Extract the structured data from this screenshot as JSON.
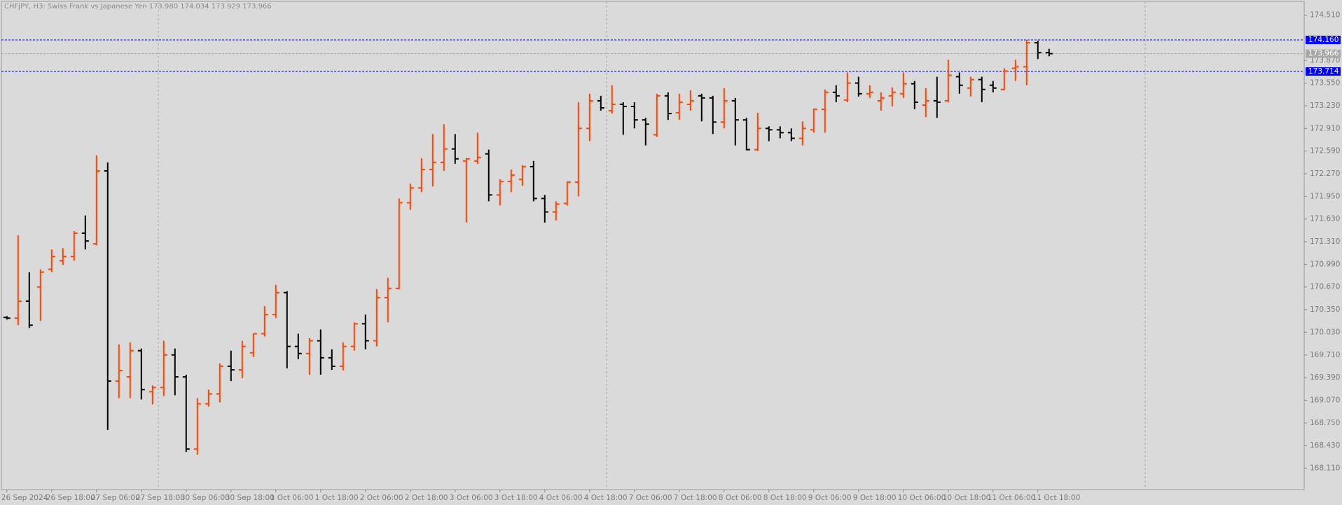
{
  "chart_data": {
    "type": "ohlc",
    "title": "CHFJPY, H3:  Swiss Frank vs Japanese Yen  173.980 174.034 173.929 173.966",
    "categories": [
      "26 Sep 2024",
      null,
      null,
      null,
      "26 Sep 18:00",
      null,
      null,
      null,
      "27 Sep 06:00",
      null,
      null,
      null,
      "27 Sep 18:00",
      null,
      null,
      null,
      "30 Sep 06:00",
      null,
      null,
      null,
      "30 Sep 18:00",
      null,
      null,
      null,
      "1 Oct 06:00",
      null,
      null,
      null,
      "1 Oct 18:00",
      null,
      null,
      null,
      "2 Oct 06:00",
      null,
      null,
      null,
      "2 Oct 18:00",
      null,
      null,
      null,
      "3 Oct 06:00",
      null,
      null,
      null,
      "3 Oct 18:00",
      null,
      null,
      null,
      "4 Oct 06:00",
      null,
      null,
      null,
      "4 Oct 18:00",
      null,
      null,
      null,
      "7 Oct 06:00",
      null,
      null,
      null,
      "7 Oct 18:00",
      null,
      null,
      null,
      "8 Oct 06:00",
      null,
      null,
      null,
      "8 Oct 18:00",
      null,
      null,
      null,
      "9 Oct 06:00",
      null,
      null,
      null,
      "9 Oct 18:00",
      null,
      null,
      null,
      "10 Oct 06:00",
      null,
      null,
      null,
      "10 Oct 18:00",
      null,
      null,
      null,
      "11 Oct 06:00",
      null,
      null,
      null,
      "11 Oct 18:00",
      null
    ],
    "open": [
      170.24,
      170.23,
      170.47,
      170.67,
      170.92,
      171.04,
      171.1,
      171.43,
      171.28,
      172.31,
      169.34,
      169.4,
      169.77,
      169.19,
      169.25,
      169.71,
      169.4,
      168.38,
      169.02,
      169.16,
      169.55,
      169.5,
      169.74,
      170.01,
      170.28,
      170.59,
      169.83,
      169.73,
      169.91,
      169.67,
      169.55,
      169.83,
      170.15,
      169.91,
      170.52,
      170.65,
      171.86,
      172.07,
      172.33,
      172.43,
      172.62,
      172.45,
      172.45,
      172.55,
      171.97,
      172.16,
      172.19,
      172.37,
      171.92,
      171.73,
      171.85,
      172.15,
      172.91,
      173.3,
      173.16,
      173.25,
      173.22,
      173.03,
      172.82,
      173.37,
      173.13,
      173.25,
      173.37,
      173.34,
      173.0,
      173.3,
      173.03,
      172.61,
      172.91,
      172.89,
      172.85,
      172.77,
      172.89,
      173.18,
      173.42,
      173.31,
      173.55,
      173.4,
      173.3,
      173.37,
      173.4,
      173.54,
      173.24,
      173.3,
      173.3,
      173.64,
      173.48,
      173.6,
      173.52,
      173.46,
      173.76,
      173.78,
      174.12,
      173.98
    ],
    "high": [
      170.26,
      171.4,
      170.88,
      170.92,
      171.2,
      171.22,
      171.46,
      171.68,
      172.53,
      172.43,
      169.86,
      169.89,
      169.8,
      169.28,
      169.91,
      169.8,
      169.43,
      169.1,
      169.22,
      169.59,
      169.77,
      169.91,
      170.01,
      170.4,
      170.7,
      170.61,
      170.01,
      169.95,
      170.07,
      169.79,
      169.89,
      170.17,
      170.28,
      170.64,
      170.8,
      171.92,
      172.13,
      172.49,
      172.83,
      172.97,
      172.83,
      172.49,
      172.85,
      172.61,
      172.19,
      172.33,
      172.39,
      172.45,
      171.97,
      171.88,
      172.16,
      173.28,
      173.4,
      173.37,
      173.52,
      173.28,
      173.28,
      173.06,
      173.4,
      173.42,
      173.4,
      173.45,
      173.4,
      173.37,
      173.48,
      173.34,
      173.06,
      173.13,
      172.94,
      172.94,
      172.91,
      173.01,
      173.19,
      173.46,
      173.52,
      173.7,
      173.64,
      173.52,
      173.42,
      173.49,
      173.7,
      173.58,
      173.48,
      173.64,
      173.88,
      173.7,
      173.64,
      173.64,
      173.58,
      173.76,
      173.88,
      174.16,
      174.15,
      174.034
    ],
    "low": [
      170.21,
      170.13,
      170.09,
      170.19,
      170.88,
      170.98,
      171.04,
      171.2,
      171.26,
      168.65,
      169.1,
      169.1,
      169.08,
      169.01,
      169.13,
      169.14,
      168.34,
      168.3,
      168.98,
      169.04,
      169.34,
      169.38,
      169.68,
      169.97,
      170.23,
      169.52,
      169.65,
      169.43,
      169.43,
      169.5,
      169.49,
      169.77,
      169.79,
      169.83,
      170.17,
      170.64,
      171.76,
      172.01,
      172.09,
      172.31,
      172.41,
      171.58,
      172.41,
      171.88,
      171.82,
      172.01,
      172.1,
      171.88,
      171.58,
      171.61,
      171.82,
      171.95,
      172.73,
      173.16,
      173.12,
      172.82,
      172.91,
      172.67,
      172.79,
      173.03,
      173.03,
      173.16,
      173.01,
      172.83,
      172.91,
      172.67,
      172.6,
      172.59,
      172.73,
      172.77,
      172.73,
      172.67,
      172.85,
      172.85,
      173.28,
      173.28,
      173.36,
      173.34,
      173.16,
      173.22,
      173.34,
      173.18,
      173.07,
      173.06,
      173.28,
      173.4,
      173.36,
      173.28,
      173.42,
      173.45,
      173.58,
      173.52,
      173.89,
      173.929
    ],
    "close": [
      170.23,
      170.47,
      170.13,
      170.88,
      171.1,
      171.1,
      171.43,
      171.32,
      172.31,
      169.34,
      169.49,
      169.77,
      169.22,
      169.25,
      169.71,
      169.4,
      168.38,
      169.02,
      169.16,
      169.55,
      169.5,
      169.83,
      170.01,
      170.28,
      170.59,
      169.83,
      169.73,
      169.91,
      169.67,
      169.55,
      169.83,
      170.15,
      169.91,
      170.52,
      170.65,
      171.86,
      172.07,
      172.33,
      172.43,
      172.62,
      172.48,
      172.48,
      172.5,
      171.97,
      172.16,
      172.25,
      172.37,
      171.92,
      171.73,
      171.84,
      172.15,
      172.91,
      173.3,
      173.2,
      173.25,
      173.22,
      173.03,
      172.97,
      173.37,
      173.12,
      173.28,
      173.3,
      173.34,
      173.0,
      173.3,
      173.03,
      172.61,
      172.91,
      172.89,
      172.85,
      172.77,
      172.91,
      173.18,
      173.42,
      173.37,
      173.55,
      173.4,
      173.42,
      173.34,
      173.42,
      173.54,
      173.28,
      173.3,
      173.28,
      173.66,
      173.52,
      173.6,
      173.46,
      173.48,
      173.72,
      173.78,
      174.12,
      173.98,
      173.966
    ],
    "up_color": "#ff4500",
    "down_color": "#000000",
    "ylim": [
      167.808,
      174.704
    ],
    "yticks": [
      {
        "value": 174.51,
        "label": "174.510"
      },
      {
        "value": 173.87,
        "label": "173.870"
      },
      {
        "value": 173.55,
        "label": "173.550"
      },
      {
        "value": 173.23,
        "label": "173.230"
      },
      {
        "value": 172.91,
        "label": "172.910"
      },
      {
        "value": 172.59,
        "label": "172.590"
      },
      {
        "value": 172.27,
        "label": "172.270"
      },
      {
        "value": 171.95,
        "label": "171.950"
      },
      {
        "value": 171.63,
        "label": "171.630"
      },
      {
        "value": 171.31,
        "label": "171.310"
      },
      {
        "value": 170.99,
        "label": "170.990"
      },
      {
        "value": 170.67,
        "label": "170.670"
      },
      {
        "value": 170.35,
        "label": "170.350"
      },
      {
        "value": 170.03,
        "label": "170.030"
      },
      {
        "value": 169.71,
        "label": "169.710"
      },
      {
        "value": 169.39,
        "label": "169.390"
      },
      {
        "value": 169.07,
        "label": "169.070"
      },
      {
        "value": 168.75,
        "label": "168.750"
      },
      {
        "value": 168.43,
        "label": "168.430"
      },
      {
        "value": 168.11,
        "label": "168.110"
      }
    ],
    "levels": [
      {
        "value": {
          "value": 174.16,
          "label": "174.160"
        },
        "color": "#0000ff"
      },
      {
        "value": 173.714,
        "color": "#0000ff"
      },
      {
        "value": 173.966,
        "color": "#a8a8a8"
      }
    ]
  }
}
